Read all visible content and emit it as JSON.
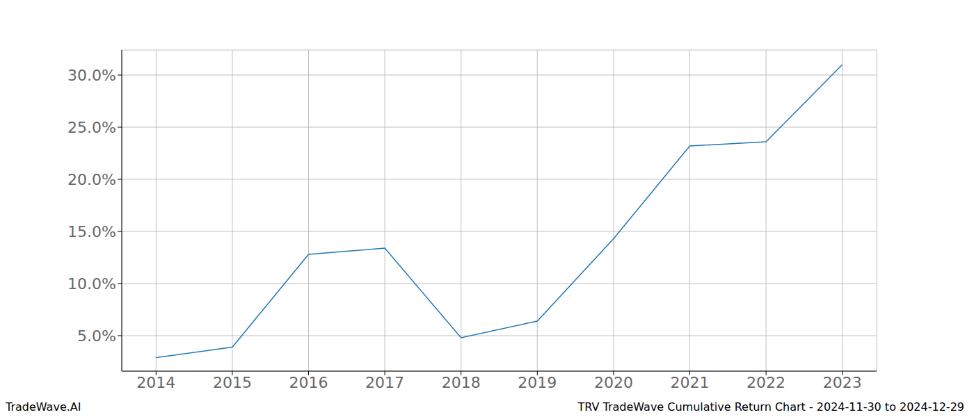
{
  "chart_data": {
    "type": "line",
    "annotations": [
      "TradeWave.AI",
      "TRV TradeWave Cumulative Return Chart - 2024-11-30 to 2024-12-29"
    ],
    "x": [
      2014,
      2015,
      2016,
      2017,
      2018,
      2019,
      2020,
      2021,
      2022,
      2023
    ],
    "values": [
      2.9,
      3.9,
      12.8,
      13.4,
      4.8,
      6.4,
      14.3,
      23.2,
      23.6,
      31.0
    ],
    "color": "#1f77b4",
    "xlim": [
      2013.55,
      2023.45
    ],
    "xticks": [
      2014,
      2015,
      2016,
      2017,
      2018,
      2019,
      2020,
      2021,
      2022,
      2023
    ],
    "ylim": [
      1.6,
      32.4
    ],
    "yticks": [
      {
        "value": 5,
        "label": "5.0%"
      },
      {
        "value": 10,
        "label": "10.0%"
      },
      {
        "value": 15,
        "label": "15.0%"
      },
      {
        "value": 20,
        "label": "20.0%"
      },
      {
        "value": 25,
        "label": "25.0%"
      },
      {
        "value": 30,
        "label": "30.0%"
      }
    ],
    "grid": true
  }
}
